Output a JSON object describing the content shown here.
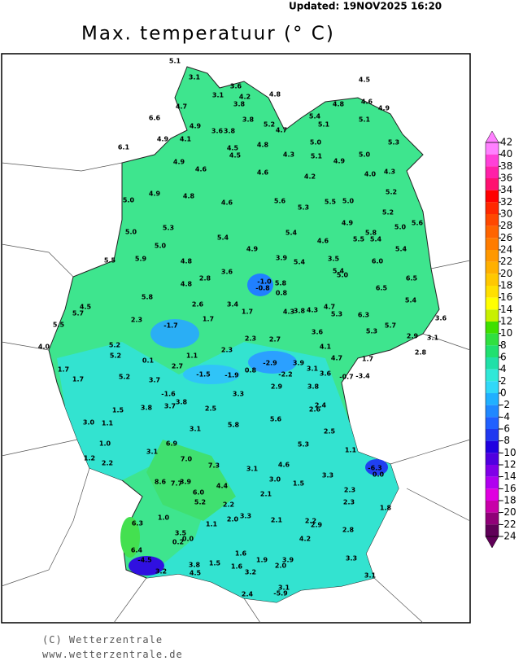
{
  "header": {
    "updated": "Updated:  19NOV2025  16:20",
    "title": "Max. temperatuur (° C)"
  },
  "legend": {
    "ticks": [
      42,
      40,
      38,
      36,
      34,
      32,
      30,
      28,
      26,
      24,
      22,
      20,
      18,
      16,
      14,
      12,
      10,
      8,
      6,
      4,
      2,
      0,
      -2,
      -4,
      -6,
      -8,
      -10,
      -12,
      -14,
      -16,
      -18,
      -20,
      -22,
      -24
    ],
    "colors": [
      "#ff80ff",
      "#ff40d8",
      "#ff20a8",
      "#ff1070",
      "#ff0000",
      "#ff2800",
      "#ff4800",
      "#ff6400",
      "#ff7c00",
      "#ff9800",
      "#ffb000",
      "#ffc800",
      "#ffe000",
      "#ffff00",
      "#c8f000",
      "#40e000",
      "#30e040",
      "#20e070",
      "#20e0a8",
      "#30e8d8",
      "#30d8f8",
      "#20b0ff",
      "#2088ff",
      "#2060ff",
      "#2038f0",
      "#2000e0",
      "#5000e0",
      "#8000e8",
      "#b000f0",
      "#e000e0",
      "#c800a8",
      "#900078",
      "#600058"
    ]
  },
  "stations": [
    "5.1",
    "3.1",
    "3.1",
    "3.6",
    "4.2",
    "3.8",
    "4.8",
    "4.5",
    "4.6",
    "4.9",
    "4.8",
    "5.4",
    "5.1",
    "5.1",
    "4.7",
    "6.6",
    "4.9",
    "3.8",
    "3.6",
    "3.8",
    "5.2",
    "4.7",
    "4.9",
    "4.1",
    "6.1",
    "4.5",
    "4.5",
    "4.8",
    "5.0",
    "5.3",
    "4.3",
    "5.1",
    "5.0",
    "4.9",
    "4.6",
    "4.6",
    "4.9",
    "4.2",
    "4.0",
    "4.3",
    "4.9",
    "4.8",
    "5.0",
    "4.6",
    "5.6",
    "5.3",
    "5.5",
    "5.0",
    "5.2",
    "5.2",
    "5.3",
    "5.0",
    "5.4",
    "4.9",
    "5.4",
    "5.8",
    "5.5",
    "5.4",
    "5.0",
    "5.6",
    "4.6",
    "5.0",
    "5.9",
    "5.5",
    "4.8",
    "4.9",
    "5.4",
    "3.9",
    "5.4",
    "3.5",
    "6.0",
    "3.6",
    "5.4",
    "5.0",
    "2.8",
    "-1.0",
    "-0.8",
    "5.8",
    "4.8",
    "5.8",
    "0.8",
    "6.5",
    "6.5",
    "4.5",
    "2.6",
    "3.4",
    "1.7",
    "4.3",
    "3.8",
    "4.3",
    "4.7",
    "5.3",
    "6.3",
    "5.4",
    "5.7",
    "2.3",
    "-1.7",
    "1.7",
    "3.6",
    "5.5",
    "5.3",
    "5.7",
    "5.2",
    "2.3",
    "2.7",
    "3.6",
    "2.9",
    "3.1",
    "4.0",
    "5.2",
    "1.1",
    "2.3",
    "4.1",
    "2.8",
    "0.1",
    "4.7",
    "1.7",
    "-2.9",
    "3.9",
    "1.7",
    "2.7",
    "3.1",
    "3.6",
    "-1.5",
    "-1.9",
    "0.8",
    "-2.2",
    "-0.7",
    "-3.4",
    "1.7",
    "5.2",
    "3.7",
    "2.9",
    "3.8",
    "-1.6",
    "3.3",
    "3.8",
    "3.7",
    "2.4",
    "2.6",
    "3.8",
    "1.5",
    "2.5",
    "3.0",
    "1.1",
    "5.6",
    "5.8",
    "3.1",
    "2.5",
    "1.0",
    "6.9",
    "5.3",
    "3.1",
    "1.1",
    "7.0",
    "1.2",
    "2.2",
    "7.3",
    "4.6",
    "-6.3",
    "0.0",
    "3.1",
    "3.3",
    "3.0",
    "8.6",
    "7.7",
    "3.9",
    "4.4",
    "1.5",
    "6.0",
    "2.1",
    "2.3",
    "5.2",
    "2.2",
    "2.3",
    "1.8",
    "1.0",
    "2.0",
    "3.3",
    "2.1",
    "2.2",
    "2.9",
    "2.8",
    "6.3",
    "1.1",
    "3.5",
    "0.0",
    "0.2",
    "4.2",
    "1.6",
    "6.4",
    "3.9",
    "-4.5",
    "3.3",
    "1.9",
    "2.0",
    "3.8",
    "1.6",
    "1.5",
    "3.2",
    "4.5",
    "3.2",
    "3.1",
    "3.1",
    "-5.9",
    "2.4"
  ],
  "footer": {
    "copyright": "(C) Wetterzentrale",
    "url": "www.wetterzentrale.de"
  }
}
